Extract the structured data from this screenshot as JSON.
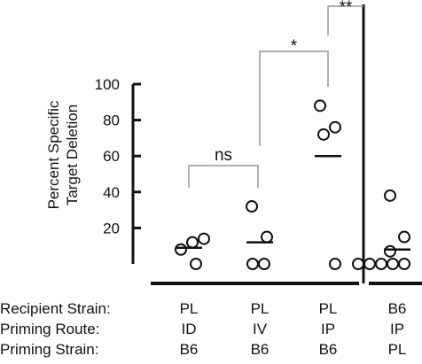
{
  "chart_data": {
    "type": "scatter",
    "title": "",
    "ylabel": [
      "Percent Specific",
      "Target Deletion"
    ],
    "ylim": [
      0,
      100
    ],
    "yticks": [
      20,
      40,
      60,
      80,
      100
    ],
    "groups": [
      {
        "recipient_strain": "PL",
        "priming_route": "ID",
        "priming_strain": "B6",
        "points": [
          8,
          12,
          14,
          0
        ],
        "mean": 9
      },
      {
        "recipient_strain": "PL",
        "priming_route": "IV",
        "priming_strain": "B6",
        "points": [
          32,
          15,
          0,
          0
        ],
        "mean": 12
      },
      {
        "recipient_strain": "PL",
        "priming_route": "IP",
        "priming_strain": "B6",
        "points": [
          88,
          76,
          72,
          0
        ],
        "mean": 60
      },
      {
        "recipient_strain": "B6",
        "priming_route": "IP",
        "priming_strain": "PL",
        "points": [
          38,
          15,
          7,
          0,
          0,
          0,
          0,
          0
        ],
        "mean": 8
      }
    ],
    "comparisons": [
      {
        "from": 0,
        "to": 1,
        "label": "ns"
      },
      {
        "from": 1,
        "to": 2,
        "label": "*"
      },
      {
        "from": 2,
        "to": 3,
        "label": "**"
      }
    ],
    "row_labels": [
      "Recipient Strain:",
      "Priming Route:",
      "Priming Strain:"
    ],
    "grid": false,
    "legend": "none"
  }
}
